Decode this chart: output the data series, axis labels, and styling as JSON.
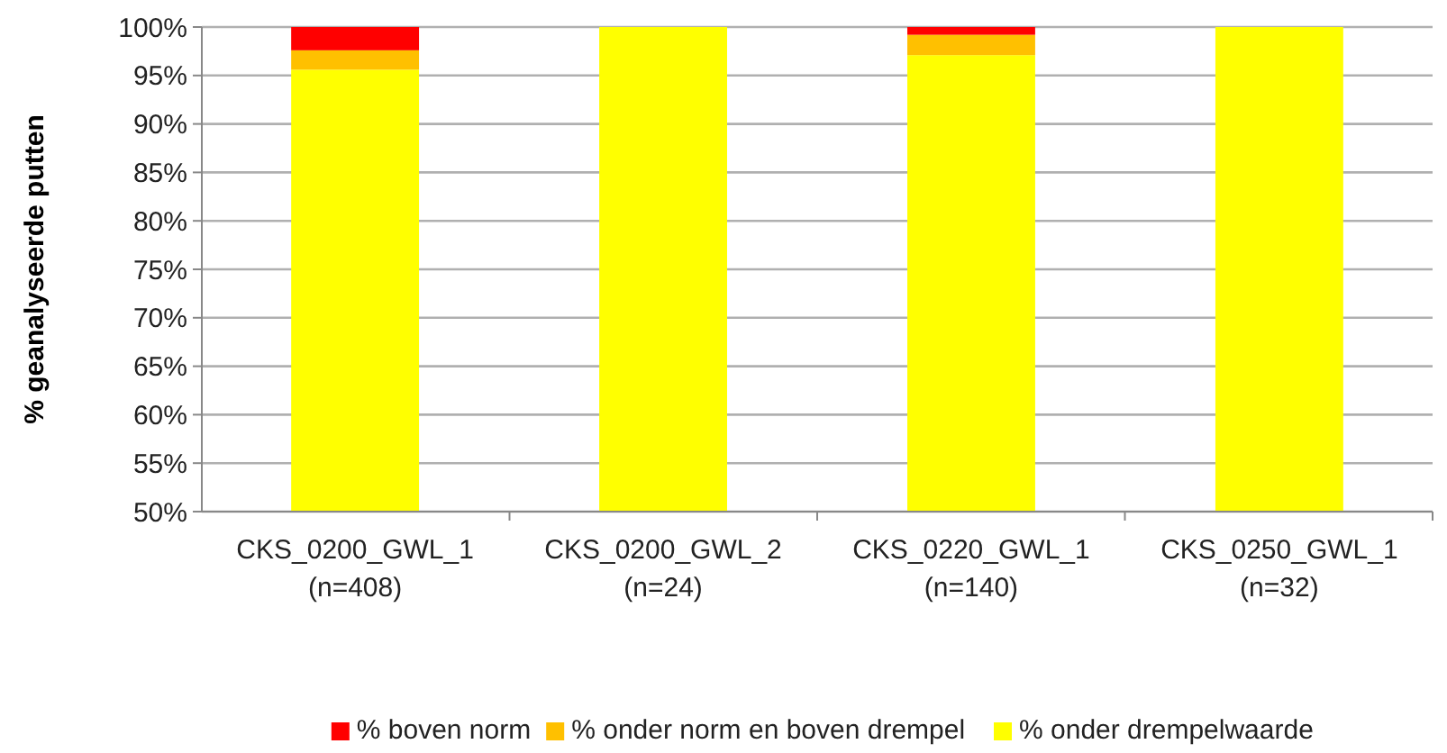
{
  "chart_data": {
    "type": "bar",
    "ylabel": "% geanalyseerde putten",
    "categories": [
      "CKS_0200_GWL_1\n(n=408)",
      "CKS_0200_GWL_2\n(n=24)",
      "CKS_0220_GWL_1\n(n=140)",
      "CKS_0250_GWL_1\n(n=32)"
    ],
    "series": [
      {
        "name": "% onder drempelwaarde",
        "color": "#ffff00",
        "base": [
          0,
          0,
          0,
          0
        ],
        "values": [
          95.6,
          100,
          97.1,
          100
        ]
      },
      {
        "name": "% onder norm en boven drempel",
        "color": "#ffc000",
        "base": [
          95.6,
          null,
          97.1,
          null
        ],
        "values": [
          2.0,
          null,
          2.1,
          null
        ]
      },
      {
        "name": "% boven norm",
        "color": "#ff0000",
        "base": [
          97.6,
          null,
          99.2,
          null
        ],
        "values": [
          2.4,
          null,
          0.8,
          null
        ]
      }
    ],
    "ylim": [
      50,
      100
    ],
    "yticks": [
      {
        "value": 50,
        "label": "50%"
      },
      {
        "value": 55,
        "label": "55%"
      },
      {
        "value": 60,
        "label": "60%"
      },
      {
        "value": 65,
        "label": "65%"
      },
      {
        "value": 70,
        "label": "70%"
      },
      {
        "value": 75,
        "label": "75%"
      },
      {
        "value": 80,
        "label": "80%"
      },
      {
        "value": 85,
        "label": "85%"
      },
      {
        "value": 90,
        "label": "90%"
      },
      {
        "value": 95,
        "label": "95%"
      },
      {
        "value": 100,
        "label": "100%"
      }
    ],
    "grid": "y",
    "legend": "bottom"
  }
}
